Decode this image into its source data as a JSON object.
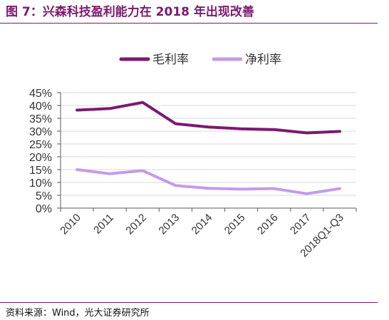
{
  "figure": {
    "title": "图 7：兴森科技盈利能力在 2018 年出现改善",
    "source": "资料来源：Wind，光大证券研究所"
  },
  "chart_data": {
    "type": "line",
    "categories": [
      "2010",
      "2011",
      "2012",
      "2013",
      "2014",
      "2015",
      "2016",
      "2017",
      "2018Q1-Q3"
    ],
    "series": [
      {
        "name": "毛利率",
        "color": "#7a1a6f",
        "values": [
          38.2,
          38.8,
          41.2,
          32.9,
          31.6,
          30.9,
          30.6,
          29.3,
          29.9
        ]
      },
      {
        "name": "净利率",
        "color": "#c39be8",
        "values": [
          15.0,
          13.4,
          14.6,
          8.8,
          7.7,
          7.4,
          7.6,
          5.6,
          7.6
        ]
      }
    ],
    "y_ticks": [
      "0%",
      "5%",
      "10%",
      "15%",
      "20%",
      "25%",
      "30%",
      "35%",
      "40%",
      "45%"
    ],
    "ylim": [
      0,
      45
    ],
    "grid": true,
    "legend_position": "top-center"
  }
}
